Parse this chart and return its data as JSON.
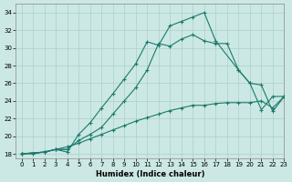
{
  "xlabel": "Humidex (Indice chaleur)",
  "background_color": "#cce8e4",
  "grid_color": "#aacfca",
  "line_color": "#1a7a6a",
  "ylim": [
    17.5,
    35
  ],
  "xlim": [
    -0.5,
    23
  ],
  "yticks": [
    18,
    20,
    22,
    24,
    26,
    28,
    30,
    32,
    34
  ],
  "xticks": [
    0,
    1,
    2,
    3,
    4,
    5,
    6,
    7,
    8,
    9,
    10,
    11,
    12,
    13,
    14,
    15,
    16,
    17,
    18,
    19,
    20,
    21,
    22,
    23
  ],
  "lineA_x": [
    0,
    1,
    2,
    3,
    4
  ],
  "lineA_y": [
    18,
    18,
    18.2,
    18.5,
    18.5
  ],
  "lineB_x": [
    0,
    2,
    3,
    4,
    5,
    6,
    7,
    8,
    9,
    10,
    11,
    12,
    13,
    14,
    15,
    16,
    17,
    18,
    19,
    20,
    21,
    22,
    23
  ],
  "lineB_y": [
    18,
    18.2,
    18.5,
    18.8,
    19.2,
    19.7,
    20.2,
    20.7,
    21.2,
    21.7,
    22.1,
    22.5,
    22.9,
    23.2,
    23.5,
    23.5,
    23.7,
    23.8,
    23.8,
    23.8,
    24.0,
    23.2,
    24.5
  ],
  "lineC_x": [
    0,
    2,
    3,
    4,
    5,
    6,
    7,
    8,
    9,
    10,
    11,
    12,
    13,
    14,
    15,
    16,
    17,
    18,
    19,
    20,
    21,
    22,
    23
  ],
  "lineC_y": [
    18,
    18.2,
    18.5,
    18.5,
    19.5,
    20.2,
    21.0,
    22.5,
    24.0,
    25.5,
    27.5,
    30.5,
    30.2,
    31.0,
    31.5,
    30.8,
    30.5,
    30.5,
    27.5,
    26.0,
    25.8,
    22.8,
    24.5
  ],
  "lineD_x": [
    0,
    2,
    3,
    4,
    5,
    6,
    7,
    8,
    9,
    10,
    11,
    12,
    13,
    14,
    15,
    16,
    17,
    19,
    20,
    21,
    22,
    23
  ],
  "lineD_y": [
    18,
    18.2,
    18.5,
    18.2,
    20.2,
    21.5,
    23.2,
    24.8,
    26.5,
    28.2,
    30.7,
    30.3,
    32.5,
    33.0,
    33.5,
    34.0,
    30.8,
    27.5,
    26.0,
    23.0,
    24.5,
    24.5
  ]
}
